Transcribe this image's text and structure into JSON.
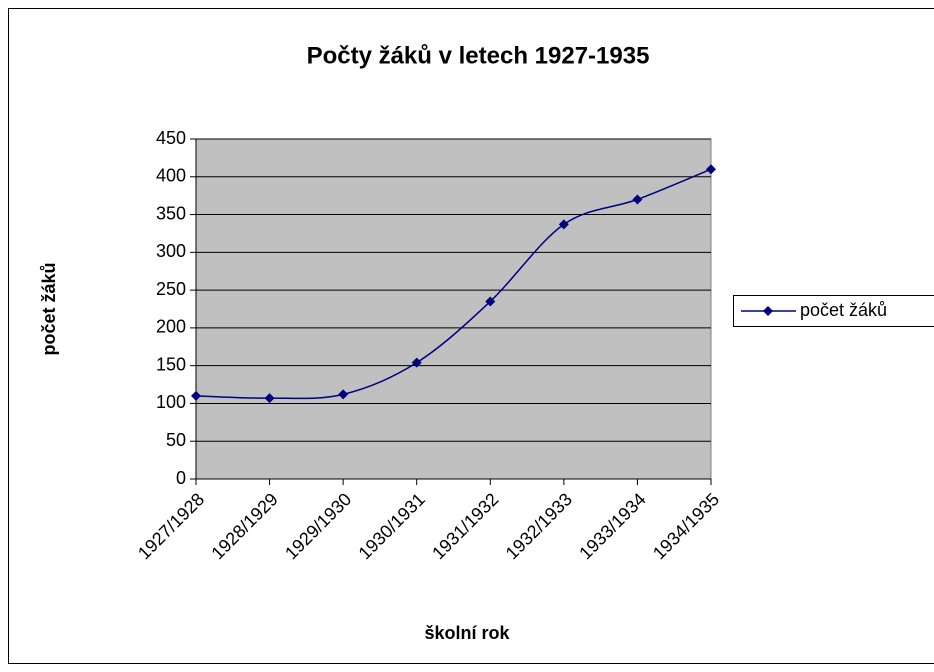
{
  "chart_data": {
    "type": "line",
    "title": "Počty žáků v letech 1927-1935",
    "x_label": "školní rok",
    "y_label": "počet žáků",
    "categories": [
      "1927/1928",
      "1928/1929",
      "1929/1930",
      "1930/1931",
      "1931/1932",
      "1932/1933",
      "1933/1934",
      "1934/1935"
    ],
    "series": [
      {
        "name": "počet žáků",
        "color": "#000080",
        "values": [
          110,
          107,
          112,
          154,
          235,
          337,
          370,
          410
        ]
      }
    ],
    "ylim": [
      0,
      450
    ],
    "yticks": [
      0,
      50,
      100,
      150,
      200,
      250,
      300,
      350,
      400,
      450
    ],
    "grid": true,
    "smooth": true,
    "legend": "right"
  }
}
